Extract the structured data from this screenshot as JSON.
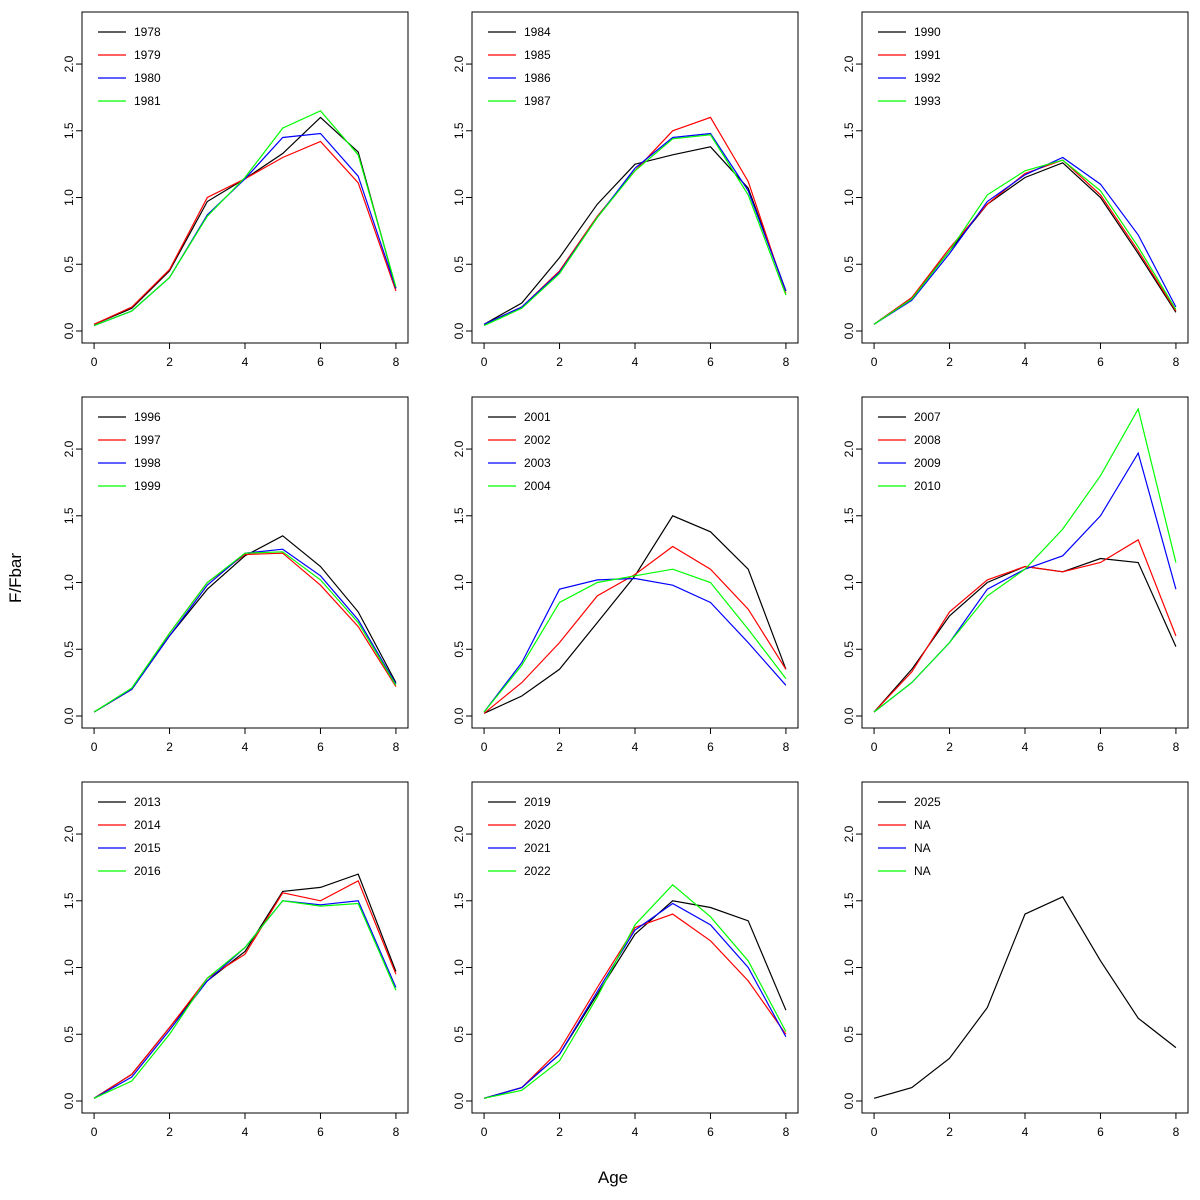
{
  "labels": {
    "xlabel": "Age",
    "ylabel": "F/Fbar"
  },
  "axes": {
    "x_ticks": [
      0,
      2,
      4,
      6,
      8
    ],
    "y_ticks": [
      0,
      0.5,
      1,
      1.5,
      2
    ],
    "xlim": [
      -0.32,
      8.32
    ],
    "ylim": [
      -0.09,
      2.39
    ],
    "grid": false
  },
  "chart_data": [
    {
      "type": "line",
      "x": [
        0,
        1,
        2,
        3,
        4,
        5,
        6,
        7,
        8
      ],
      "legend_position": "top-left",
      "series": [
        {
          "name": "1978",
          "color": "#000000",
          "values": [
            0.05,
            0.17,
            0.45,
            0.97,
            1.14,
            1.33,
            1.6,
            1.34,
            0.32
          ]
        },
        {
          "name": "1979",
          "color": "#FF0000",
          "values": [
            0.05,
            0.18,
            0.46,
            1.0,
            1.14,
            1.3,
            1.42,
            1.11,
            0.3
          ]
        },
        {
          "name": "1980",
          "color": "#0000FF",
          "values": [
            0.04,
            0.15,
            0.4,
            0.87,
            1.14,
            1.45,
            1.48,
            1.16,
            0.32
          ]
        },
        {
          "name": "1981",
          "color": "#00FF00",
          "values": [
            0.04,
            0.15,
            0.4,
            0.86,
            1.15,
            1.52,
            1.65,
            1.32,
            0.33
          ]
        }
      ]
    },
    {
      "type": "line",
      "x": [
        0,
        1,
        2,
        3,
        4,
        5,
        6,
        7,
        8
      ],
      "legend_position": "top-left",
      "series": [
        {
          "name": "1984",
          "color": "#000000",
          "values": [
            0.05,
            0.21,
            0.55,
            0.95,
            1.25,
            1.32,
            1.38,
            1.07,
            0.3
          ]
        },
        {
          "name": "1985",
          "color": "#FF0000",
          "values": [
            0.05,
            0.18,
            0.45,
            0.86,
            1.2,
            1.5,
            1.6,
            1.12,
            0.28
          ]
        },
        {
          "name": "1986",
          "color": "#0000FF",
          "values": [
            0.05,
            0.18,
            0.44,
            0.85,
            1.22,
            1.45,
            1.48,
            1.05,
            0.3
          ]
        },
        {
          "name": "1987",
          "color": "#00FF00",
          "values": [
            0.04,
            0.17,
            0.43,
            0.85,
            1.2,
            1.44,
            1.47,
            1.02,
            0.27
          ]
        }
      ]
    },
    {
      "type": "line",
      "x": [
        0,
        1,
        2,
        3,
        4,
        5,
        6,
        7,
        8
      ],
      "legend_position": "top-left",
      "series": [
        {
          "name": "1990",
          "color": "#000000",
          "values": [
            0.05,
            0.25,
            0.6,
            0.95,
            1.15,
            1.26,
            1.0,
            0.58,
            0.14
          ]
        },
        {
          "name": "1991",
          "color": "#FF0000",
          "values": [
            0.05,
            0.25,
            0.62,
            0.95,
            1.18,
            1.28,
            1.02,
            0.6,
            0.15
          ]
        },
        {
          "name": "1992",
          "color": "#0000FF",
          "values": [
            0.05,
            0.23,
            0.58,
            0.97,
            1.17,
            1.3,
            1.1,
            0.72,
            0.18
          ]
        },
        {
          "name": "1993",
          "color": "#00FF00",
          "values": [
            0.05,
            0.24,
            0.6,
            1.02,
            1.2,
            1.28,
            1.05,
            0.63,
            0.16
          ]
        }
      ]
    },
    {
      "type": "line",
      "x": [
        0,
        1,
        2,
        3,
        4,
        5,
        6,
        7,
        8
      ],
      "legend_position": "top-left",
      "series": [
        {
          "name": "1996",
          "color": "#000000",
          "values": [
            0.03,
            0.2,
            0.6,
            0.95,
            1.2,
            1.35,
            1.12,
            0.78,
            0.25
          ]
        },
        {
          "name": "1997",
          "color": "#FF0000",
          "values": [
            0.03,
            0.2,
            0.62,
            1.0,
            1.21,
            1.22,
            0.98,
            0.67,
            0.22
          ]
        },
        {
          "name": "1998",
          "color": "#0000FF",
          "values": [
            0.03,
            0.2,
            0.6,
            0.98,
            1.22,
            1.25,
            1.05,
            0.72,
            0.24
          ]
        },
        {
          "name": "1999",
          "color": "#00FF00",
          "values": [
            0.03,
            0.21,
            0.62,
            1.0,
            1.22,
            1.23,
            1.02,
            0.7,
            0.23
          ]
        }
      ]
    },
    {
      "type": "line",
      "x": [
        0,
        1,
        2,
        3,
        4,
        5,
        6,
        7,
        8
      ],
      "legend_position": "top-left",
      "series": [
        {
          "name": "2001",
          "color": "#000000",
          "values": [
            0.02,
            0.15,
            0.35,
            0.7,
            1.05,
            1.5,
            1.38,
            1.1,
            0.35
          ]
        },
        {
          "name": "2002",
          "color": "#FF0000",
          "values": [
            0.02,
            0.25,
            0.55,
            0.9,
            1.06,
            1.27,
            1.1,
            0.8,
            0.35
          ]
        },
        {
          "name": "2003",
          "color": "#0000FF",
          "values": [
            0.03,
            0.4,
            0.95,
            1.02,
            1.03,
            0.98,
            0.85,
            0.55,
            0.23
          ]
        },
        {
          "name": "2004",
          "color": "#00FF00",
          "values": [
            0.03,
            0.38,
            0.85,
            1.0,
            1.05,
            1.1,
            1.0,
            0.65,
            0.28
          ]
        }
      ]
    },
    {
      "type": "line",
      "x": [
        0,
        1,
        2,
        3,
        4,
        5,
        6,
        7,
        8
      ],
      "legend_position": "top-left",
      "series": [
        {
          "name": "2007",
          "color": "#000000",
          "values": [
            0.03,
            0.35,
            0.75,
            1.0,
            1.12,
            1.08,
            1.18,
            1.15,
            0.52
          ]
        },
        {
          "name": "2008",
          "color": "#FF0000",
          "values": [
            0.03,
            0.33,
            0.78,
            1.02,
            1.12,
            1.08,
            1.15,
            1.32,
            0.6
          ]
        },
        {
          "name": "2009",
          "color": "#0000FF",
          "values": [
            0.03,
            0.25,
            0.55,
            0.95,
            1.1,
            1.2,
            1.5,
            1.97,
            0.95
          ]
        },
        {
          "name": "2010",
          "color": "#00FF00",
          "values": [
            0.03,
            0.25,
            0.55,
            0.9,
            1.1,
            1.4,
            1.8,
            2.3,
            1.15
          ]
        }
      ]
    },
    {
      "type": "line",
      "x": [
        0,
        1,
        2,
        3,
        4,
        5,
        6,
        7,
        8
      ],
      "legend_position": "top-left",
      "series": [
        {
          "name": "2013",
          "color": "#000000",
          "values": [
            0.02,
            0.2,
            0.55,
            0.9,
            1.12,
            1.57,
            1.6,
            1.7,
            0.97
          ]
        },
        {
          "name": "2014",
          "color": "#FF0000",
          "values": [
            0.02,
            0.2,
            0.55,
            0.92,
            1.1,
            1.56,
            1.5,
            1.65,
            0.95
          ]
        },
        {
          "name": "2015",
          "color": "#0000FF",
          "values": [
            0.02,
            0.18,
            0.53,
            0.9,
            1.15,
            1.5,
            1.47,
            1.5,
            0.85
          ]
        },
        {
          "name": "2016",
          "color": "#00FF00",
          "values": [
            0.02,
            0.15,
            0.5,
            0.92,
            1.15,
            1.5,
            1.46,
            1.48,
            0.83
          ]
        }
      ]
    },
    {
      "type": "line",
      "x": [
        0,
        1,
        2,
        3,
        4,
        5,
        6,
        7,
        8
      ],
      "legend_position": "top-left",
      "series": [
        {
          "name": "2019",
          "color": "#000000",
          "values": [
            0.02,
            0.1,
            0.35,
            0.8,
            1.25,
            1.5,
            1.45,
            1.35,
            0.68
          ]
        },
        {
          "name": "2020",
          "color": "#FF0000",
          "values": [
            0.02,
            0.1,
            0.38,
            0.85,
            1.3,
            1.4,
            1.2,
            0.9,
            0.5
          ]
        },
        {
          "name": "2021",
          "color": "#0000FF",
          "values": [
            0.02,
            0.1,
            0.35,
            0.82,
            1.28,
            1.48,
            1.32,
            1.0,
            0.48
          ]
        },
        {
          "name": "2022",
          "color": "#00FF00",
          "values": [
            0.02,
            0.08,
            0.3,
            0.78,
            1.32,
            1.62,
            1.38,
            1.05,
            0.52
          ]
        }
      ]
    },
    {
      "type": "line",
      "x": [
        0,
        1,
        2,
        3,
        4,
        5,
        6,
        7,
        8
      ],
      "legend_position": "top-left",
      "series": [
        {
          "name": "2025",
          "color": "#000000",
          "values": [
            0.02,
            0.1,
            0.32,
            0.7,
            1.4,
            1.53,
            1.05,
            0.62,
            0.4
          ]
        },
        {
          "name": "NA",
          "color": "#FF0000",
          "values": null
        },
        {
          "name": "NA",
          "color": "#0000FF",
          "values": null
        },
        {
          "name": "NA",
          "color": "#00FF00",
          "values": null
        }
      ]
    }
  ]
}
